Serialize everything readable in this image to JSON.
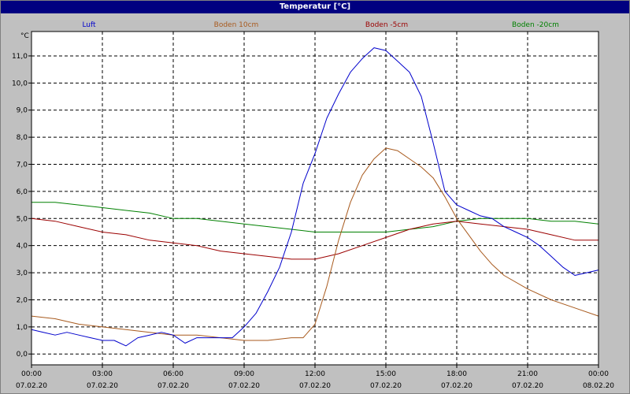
{
  "window": {
    "title": "Temperatur [°C]"
  },
  "chart_data": {
    "type": "line",
    "title": "Temperatur [°C]",
    "ylabel": "°C",
    "xlabel": "",
    "ylim": [
      -0.4,
      11.9
    ],
    "xlim": [
      0,
      24
    ],
    "grid": true,
    "legend_position": "top",
    "yticks": [
      0,
      1,
      2,
      3,
      4,
      5,
      6,
      7,
      8,
      9,
      10,
      11
    ],
    "ytick_labels": [
      "0,0",
      "1,0",
      "2,0",
      "3,0",
      "4,0",
      "5,0",
      "6,0",
      "7,0",
      "8,0",
      "9,0",
      "10,0",
      "11,0"
    ],
    "xticks": [
      0,
      3,
      6,
      9,
      12,
      15,
      18,
      21,
      24
    ],
    "xtick_times": [
      "00:00",
      "03:00",
      "06:00",
      "09:00",
      "12:00",
      "15:00",
      "18:00",
      "21:00",
      "00:00"
    ],
    "xtick_dates": [
      "07.02.20",
      "07.02.20",
      "07.02.20",
      "07.02.20",
      "07.02.20",
      "07.02.20",
      "07.02.20",
      "07.02.20",
      "08.02.20"
    ],
    "series": [
      {
        "name": "Luft",
        "color": "#0000cc",
        "x": [
          0,
          0.5,
          1,
          1.5,
          2,
          2.5,
          3,
          3.5,
          4,
          4.5,
          5,
          5.5,
          6,
          6.5,
          7,
          7.5,
          8,
          8.5,
          9,
          9.5,
          10,
          10.5,
          11,
          11.5,
          12,
          12.5,
          13,
          13.5,
          14,
          14.5,
          15,
          15.5,
          16,
          16.5,
          17,
          17.5,
          18,
          18.5,
          19,
          19.5,
          20,
          20.5,
          21,
          21.5,
          22,
          22.5,
          23,
          23.5,
          24
        ],
        "values": [
          0.9,
          0.8,
          0.7,
          0.8,
          0.7,
          0.6,
          0.5,
          0.5,
          0.3,
          0.6,
          0.7,
          0.8,
          0.7,
          0.4,
          0.6,
          0.6,
          0.6,
          0.6,
          1.0,
          1.5,
          2.3,
          3.2,
          4.5,
          6.3,
          7.4,
          8.7,
          9.6,
          10.4,
          10.9,
          11.3,
          11.2,
          10.8,
          10.4,
          9.5,
          7.8,
          6.0,
          5.5,
          5.3,
          5.1,
          5.0,
          4.7,
          4.5,
          4.3,
          4.0,
          3.6,
          3.2,
          2.9,
          3.0,
          3.1
        ]
      },
      {
        "name": "Boden 10cm",
        "color": "#a85a1e",
        "x": [
          0,
          1,
          2,
          3,
          4,
          5,
          6,
          7,
          8,
          9,
          10,
          11,
          11.5,
          12,
          12.5,
          13,
          13.5,
          14,
          14.5,
          15,
          15.5,
          16,
          16.5,
          17,
          17.5,
          18,
          18.5,
          19,
          19.5,
          20,
          21,
          22,
          23,
          24
        ],
        "values": [
          1.4,
          1.3,
          1.1,
          1.0,
          0.9,
          0.8,
          0.7,
          0.7,
          0.6,
          0.5,
          0.5,
          0.6,
          0.6,
          1.1,
          2.5,
          4.2,
          5.6,
          6.6,
          7.2,
          7.6,
          7.5,
          7.2,
          6.9,
          6.5,
          5.8,
          5.0,
          4.4,
          3.8,
          3.3,
          2.9,
          2.4,
          2.0,
          1.7,
          1.4
        ]
      },
      {
        "name": "Boden -5cm",
        "color": "#9b0000",
        "x": [
          0,
          1,
          2,
          3,
          4,
          5,
          6,
          7,
          8,
          9,
          10,
          11,
          12,
          13,
          14,
          15,
          16,
          17,
          18,
          19,
          20,
          21,
          22,
          23,
          24
        ],
        "values": [
          5.0,
          4.9,
          4.7,
          4.5,
          4.4,
          4.2,
          4.1,
          4.0,
          3.8,
          3.7,
          3.6,
          3.5,
          3.5,
          3.7,
          4.0,
          4.3,
          4.6,
          4.8,
          4.9,
          4.8,
          4.7,
          4.6,
          4.4,
          4.2,
          4.2
        ]
      },
      {
        "name": "Boden -20cm",
        "color": "#008000",
        "x": [
          0,
          1,
          2,
          3,
          4,
          5,
          6,
          7,
          8,
          9,
          10,
          11,
          12,
          13,
          14,
          15,
          16,
          17,
          18,
          19,
          20,
          21,
          22,
          23,
          24
        ],
        "values": [
          5.6,
          5.6,
          5.5,
          5.4,
          5.3,
          5.2,
          5.0,
          5.0,
          4.9,
          4.8,
          4.7,
          4.6,
          4.5,
          4.5,
          4.5,
          4.5,
          4.6,
          4.7,
          4.9,
          5.0,
          5.0,
          5.0,
          4.9,
          4.9,
          4.8
        ]
      }
    ]
  }
}
